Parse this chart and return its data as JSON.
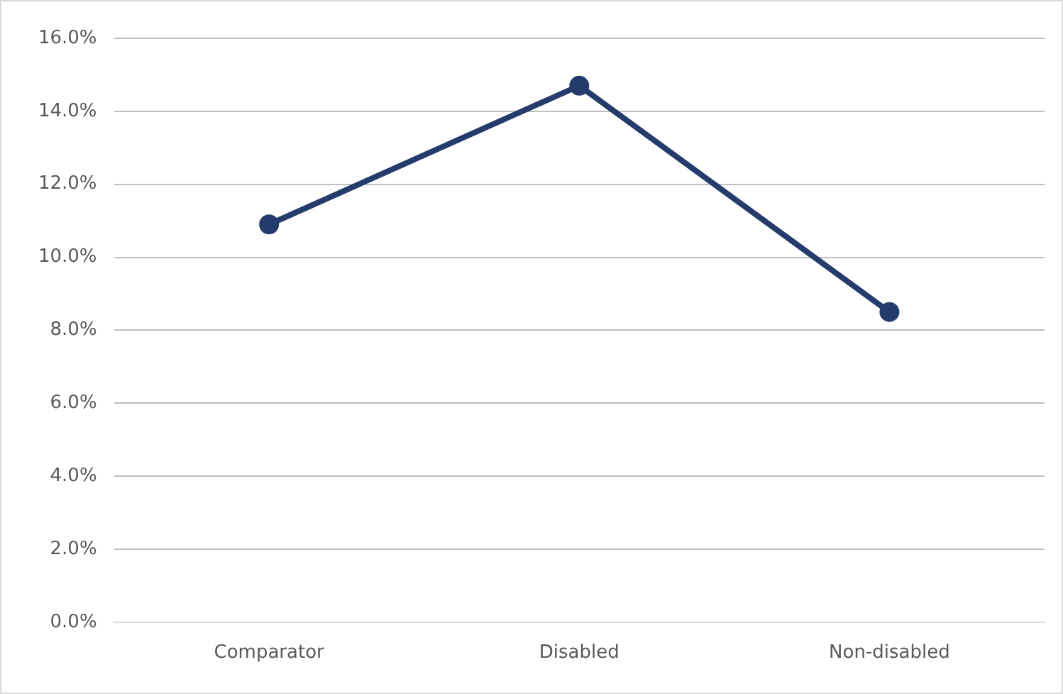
{
  "chart_data": {
    "type": "line",
    "categories": [
      "Comparator",
      "Disabled",
      "Non-disabled"
    ],
    "series": [
      {
        "color": "#243b6b",
        "values": [
          10.9,
          14.7,
          8.5
        ]
      }
    ],
    "ylim": [
      0,
      16
    ],
    "yticks": [
      {
        "value": 0,
        "label": "0.0%"
      },
      {
        "value": 2,
        "label": "2.0%"
      },
      {
        "value": 4,
        "label": "4.0%"
      },
      {
        "value": 6,
        "label": "6.0%"
      },
      {
        "value": 8,
        "label": "8.0%"
      },
      {
        "value": 10,
        "label": "10.0%"
      },
      {
        "value": 12,
        "label": "12.0%"
      },
      {
        "value": 14,
        "label": "14.0%"
      },
      {
        "value": 16,
        "label": "16.0%"
      }
    ],
    "grid": "y",
    "legend": false,
    "marker": "circle",
    "line_style": "solid"
  }
}
